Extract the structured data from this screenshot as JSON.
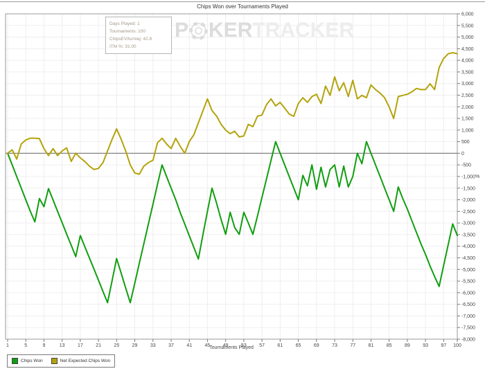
{
  "header": {
    "title": "Chips Won over Tournaments Played"
  },
  "info_box": {
    "lines": [
      "Days Played: 1",
      "Tournaments: 100",
      "ChipsEV/turniej: 42.8",
      "ITM %: 31.00"
    ]
  },
  "watermark": {
    "p": "P",
    "ker": "KER",
    "tracker": "TRACKER"
  },
  "legend": {
    "entries": [
      {
        "label": "Chips Won",
        "color": "#0f9e0f"
      },
      {
        "label": "Net Expected Chips Won",
        "color": "#b3a30b"
      }
    ]
  },
  "chart_data": {
    "type": "line",
    "title": "Chips Won over Tournaments Played",
    "xlabel": "Tournaments Played",
    "ylabel": "%",
    "xlim": [
      1,
      100
    ],
    "ylim": [
      -8000,
      6000
    ],
    "ytick_step": 500,
    "x_ticks": [
      1,
      5,
      9,
      13,
      17,
      21,
      25,
      29,
      33,
      37,
      41,
      45,
      49,
      53,
      57,
      61,
      65,
      69,
      73,
      77,
      81,
      85,
      89,
      93,
      97,
      100
    ],
    "grid": true,
    "legend_position": "bottom-left",
    "zero_line": 0,
    "colors": {
      "grid": "#f0eef0",
      "frame": "#9a9a9a",
      "zero": "#666666",
      "tick_text": "#444444"
    },
    "series": [
      {
        "name": "Chips Won",
        "color": "#0f9e0f",
        "values": [
          0,
          -500,
          -1000,
          -1500,
          -2000,
          -2500,
          -2950,
          -1950,
          -2300,
          -1520,
          -2010,
          -2500,
          -2990,
          -3480,
          -3960,
          -4450,
          -3540,
          -4020,
          -4500,
          -4980,
          -5460,
          -5950,
          -6430,
          -5480,
          -4530,
          -5160,
          -5800,
          -6430,
          -5580,
          -4730,
          -3880,
          -3040,
          -2190,
          -1340,
          -500,
          -1000,
          -1500,
          -2000,
          -2550,
          -3050,
          -3550,
          -4050,
          -4550,
          -3500,
          -2500,
          -1500,
          -2150,
          -2850,
          -3490,
          -2540,
          -3200,
          -3490,
          -2540,
          -3000,
          -3490,
          -2700,
          -1900,
          -1100,
          -300,
          500,
          0,
          -500,
          -1000,
          -1500,
          -2000,
          -950,
          -1400,
          -500,
          -1550,
          -600,
          -1450,
          -700,
          -500,
          -1450,
          -550,
          -1450,
          -1000,
          0,
          -450,
          500,
          0,
          -500,
          -1000,
          -1500,
          -2000,
          -2500,
          -1450,
          -1950,
          -2400,
          -2900,
          -3400,
          -3900,
          -4350,
          -4850,
          -5300,
          -5730,
          -4830,
          -3930,
          -3040,
          -3540
        ]
      },
      {
        "name": "Net Expected Chips Won",
        "color": "#b3a30b",
        "values": [
          0,
          150,
          -250,
          400,
          570,
          650,
          650,
          630,
          200,
          -100,
          200,
          -100,
          100,
          230,
          -350,
          0,
          -200,
          -350,
          -550,
          -700,
          -650,
          -400,
          100,
          600,
          1050,
          600,
          100,
          -500,
          -850,
          -900,
          -550,
          -400,
          -300,
          450,
          645,
          400,
          200,
          645,
          300,
          0,
          500,
          795,
          1310,
          1830,
          2340,
          1840,
          1600,
          1245,
          995,
          845,
          945,
          700,
          745,
          1245,
          1145,
          1595,
          1645,
          2095,
          2340,
          2040,
          2190,
          1940,
          1690,
          1590,
          2140,
          2390,
          2190,
          2440,
          2540,
          2140,
          2890,
          2490,
          3290,
          2690,
          3040,
          2440,
          3140,
          2340,
          2490,
          2390,
          2940,
          2740,
          2590,
          2390,
          1990,
          1495,
          2440,
          2490,
          2540,
          2640,
          2790,
          2740,
          2740,
          2990,
          2740,
          3690,
          4080,
          4280,
          4330,
          4280
        ]
      }
    ]
  }
}
